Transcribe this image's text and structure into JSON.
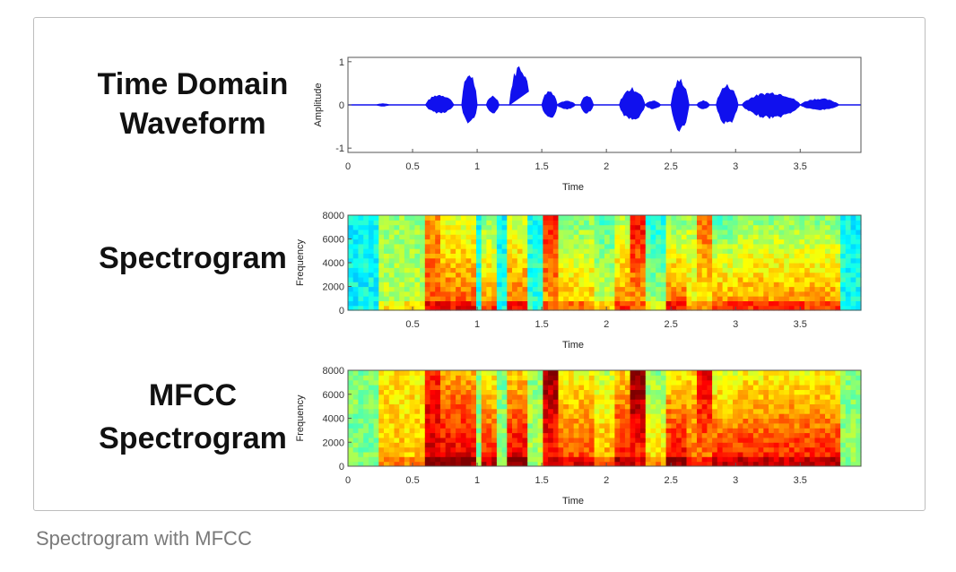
{
  "labels": {
    "waveform": [
      "Time Domain",
      "Waveform"
    ],
    "spectrogram": [
      "Spectrogram"
    ],
    "mfcc": [
      "MFCC",
      "Spectrogram"
    ]
  },
  "caption": "Spectrogram with MFCC",
  "chart_data": [
    {
      "type": "line",
      "title": "Time Domain Waveform",
      "xlabel": "Time",
      "ylabel": "Amplitude",
      "xlim": [
        0,
        3.97
      ],
      "ylim": [
        -1.1,
        1.1
      ],
      "xticks": [
        "0",
        "0.5",
        "1",
        "1.5",
        "2",
        "2.5",
        "3",
        "3.5"
      ],
      "xtick_values": [
        0,
        0.5,
        1,
        1.5,
        2,
        2.5,
        3,
        3.5
      ],
      "yticks": [
        "-1",
        "0",
        "1"
      ],
      "ytick_values": [
        -1,
        0,
        1
      ],
      "color": "#1010ee",
      "bursts": [
        [
          0.22,
          0.32,
          0.03,
          -0.03
        ],
        [
          0.6,
          0.82,
          0.25,
          -0.2
        ],
        [
          0.88,
          1.0,
          0.78,
          -0.45
        ],
        [
          1.07,
          1.17,
          0.22,
          -0.2
        ],
        [
          1.25,
          1.41,
          0.97,
          -0.92
        ],
        [
          1.5,
          1.62,
          0.35,
          -0.35
        ],
        [
          1.62,
          1.76,
          0.1,
          -0.1
        ],
        [
          1.8,
          1.9,
          0.22,
          -0.2
        ],
        [
          2.1,
          2.3,
          0.4,
          -0.38
        ],
        [
          2.3,
          2.42,
          0.1,
          -0.1
        ],
        [
          2.5,
          2.64,
          0.62,
          -0.62
        ],
        [
          2.7,
          2.8,
          0.1,
          -0.1
        ],
        [
          2.85,
          3.02,
          0.48,
          -0.48
        ],
        [
          3.05,
          3.5,
          0.3,
          -0.32
        ],
        [
          3.5,
          3.8,
          0.15,
          -0.12
        ]
      ]
    },
    {
      "type": "heatmap",
      "title": "Spectrogram",
      "xlabel": "Time",
      "ylabel": "Frequency",
      "xlim": [
        0,
        3.97
      ],
      "ylim": [
        0,
        8000
      ],
      "xticks": [
        "0.5",
        "1",
        "1.5",
        "2",
        "2.5",
        "3",
        "3.5"
      ],
      "xtick_values": [
        0.5,
        1,
        1.5,
        2,
        2.5,
        3,
        3.5
      ],
      "yticks": [
        "0",
        "2000",
        "4000",
        "6000",
        "8000"
      ],
      "ytick_values": [
        0,
        2000,
        4000,
        6000,
        8000
      ],
      "colormap": "jet",
      "level_shift": 0,
      "segments": [
        [
          0,
          0.22,
          0.38,
          0.38
        ],
        [
          0.22,
          0.6,
          0.56,
          0.52
        ],
        [
          0.6,
          0.72,
          0.8,
          0.72
        ],
        [
          0.72,
          1.0,
          0.8,
          0.58
        ],
        [
          1.0,
          1.05,
          0.4,
          0.38
        ],
        [
          1.05,
          1.17,
          0.75,
          0.5
        ],
        [
          1.17,
          1.22,
          0.4,
          0.38
        ],
        [
          1.22,
          1.4,
          0.8,
          0.55
        ],
        [
          1.4,
          1.5,
          0.42,
          0.4
        ],
        [
          1.5,
          1.62,
          0.7,
          0.86
        ],
        [
          1.62,
          1.78,
          0.7,
          0.5
        ],
        [
          1.78,
          1.9,
          0.7,
          0.5
        ],
        [
          1.9,
          2.08,
          0.6,
          0.45
        ],
        [
          2.08,
          2.2,
          0.75,
          0.55
        ],
        [
          2.2,
          2.32,
          0.7,
          0.88
        ],
        [
          2.32,
          2.48,
          0.55,
          0.4
        ],
        [
          2.48,
          2.62,
          0.8,
          0.5
        ],
        [
          2.62,
          2.7,
          0.65,
          0.55
        ],
        [
          2.7,
          2.8,
          0.62,
          0.78
        ],
        [
          2.8,
          3.0,
          0.75,
          0.45
        ],
        [
          3.0,
          3.5,
          0.75,
          0.5
        ],
        [
          3.5,
          3.8,
          0.75,
          0.5
        ],
        [
          3.8,
          3.97,
          0.4,
          0.38
        ]
      ]
    },
    {
      "type": "heatmap",
      "title": "MFCC Spectrogram",
      "xlabel": "Time",
      "ylabel": "Frequency",
      "xlim": [
        0,
        3.97
      ],
      "ylim": [
        0,
        8000
      ],
      "xticks": [
        "0",
        "0.5",
        "1",
        "1.5",
        "2",
        "2.5",
        "3",
        "3.5"
      ],
      "xtick_values": [
        0,
        0.5,
        1,
        1.5,
        2,
        2.5,
        3,
        3.5
      ],
      "yticks": [
        "0",
        "2000",
        "4000",
        "6000",
        "8000"
      ],
      "ytick_values": [
        0,
        2000,
        4000,
        6000,
        8000
      ],
      "colormap": "jet",
      "level_shift": 0.12,
      "segments": [
        [
          0,
          0.22,
          0.38,
          0.38
        ],
        [
          0.22,
          0.6,
          0.56,
          0.52
        ],
        [
          0.6,
          0.72,
          0.8,
          0.72
        ],
        [
          0.72,
          1.0,
          0.8,
          0.58
        ],
        [
          1.0,
          1.05,
          0.4,
          0.38
        ],
        [
          1.05,
          1.17,
          0.75,
          0.5
        ],
        [
          1.17,
          1.22,
          0.4,
          0.38
        ],
        [
          1.22,
          1.4,
          0.8,
          0.55
        ],
        [
          1.4,
          1.5,
          0.42,
          0.4
        ],
        [
          1.5,
          1.62,
          0.7,
          0.86
        ],
        [
          1.62,
          1.78,
          0.7,
          0.5
        ],
        [
          1.78,
          1.9,
          0.7,
          0.5
        ],
        [
          1.9,
          2.08,
          0.6,
          0.45
        ],
        [
          2.08,
          2.2,
          0.75,
          0.55
        ],
        [
          2.2,
          2.32,
          0.7,
          0.88
        ],
        [
          2.32,
          2.48,
          0.55,
          0.4
        ],
        [
          2.48,
          2.62,
          0.8,
          0.5
        ],
        [
          2.62,
          2.7,
          0.65,
          0.55
        ],
        [
          2.7,
          2.8,
          0.62,
          0.78
        ],
        [
          2.8,
          3.0,
          0.75,
          0.45
        ],
        [
          3.0,
          3.5,
          0.75,
          0.5
        ],
        [
          3.5,
          3.8,
          0.75,
          0.5
        ],
        [
          3.8,
          3.97,
          0.4,
          0.38
        ]
      ]
    }
  ]
}
